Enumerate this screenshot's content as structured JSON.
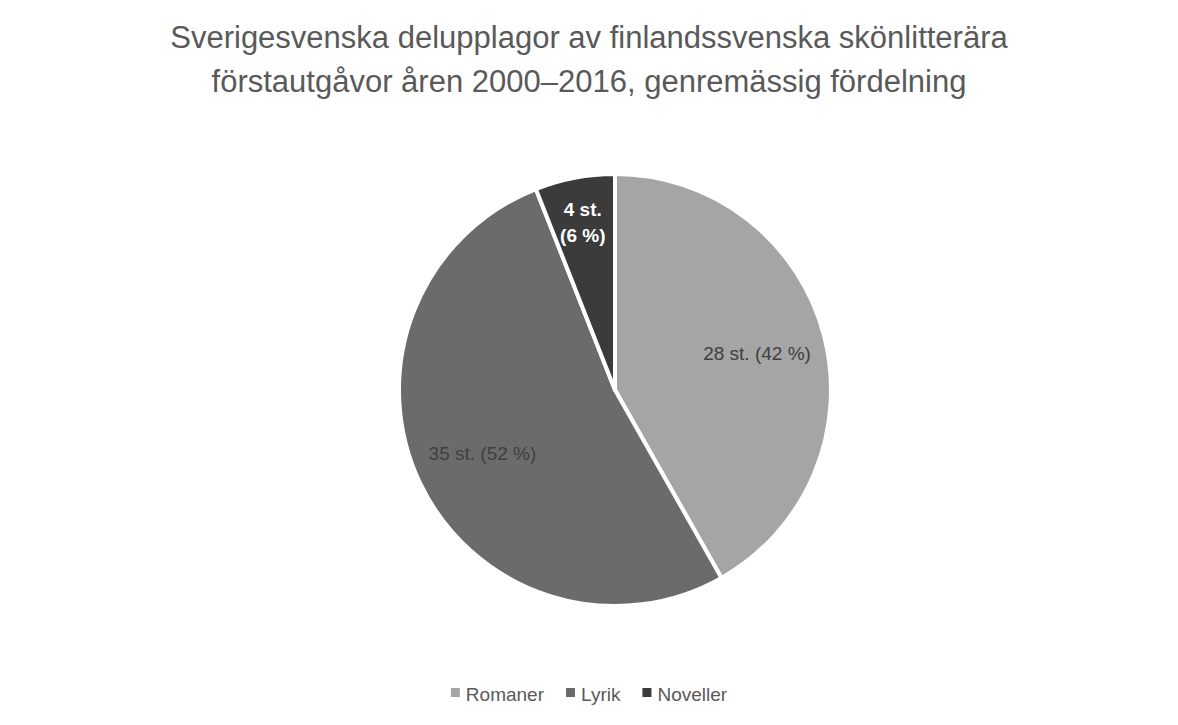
{
  "chart_data": {
    "type": "pie",
    "title": "Sverigesvenska delupplagor av finlandssvenska skönlitterära förstautgåvor åren 2000–2016, genremässig fördelning",
    "categories": [
      "Romaner",
      "Lyrik",
      "Noveller"
    ],
    "values": [
      28,
      35,
      4
    ],
    "value_labels": [
      "28 st. (42 %)",
      "35 st. (52 %)",
      "4 st. (6 %)"
    ],
    "colors": [
      "#a5a5a5",
      "#6b6b6b",
      "#3b3b3b"
    ],
    "data_labels": true,
    "legend": "bottom"
  }
}
